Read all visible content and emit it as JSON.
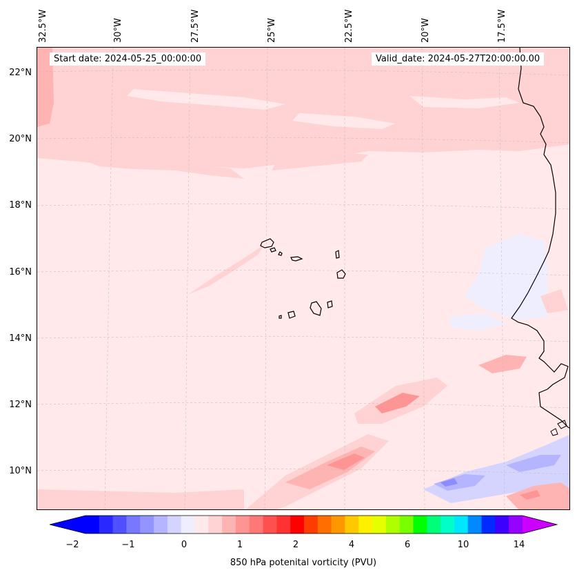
{
  "header": {
    "start_date": "Start date: 2024-05-25_00:00:00",
    "valid_date": "Valid_date: 2024-05-27T20:00:00.00"
  },
  "longitude_labels": [
    "32.5°W",
    "30°W",
    "27.5°W",
    "25°W",
    "22.5°W",
    "20°W",
    "17.5°W"
  ],
  "latitude_labels": [
    "22°N",
    "20°N",
    "18°N",
    "16°N",
    "14°N",
    "12°N",
    "10°N"
  ],
  "colorbar": {
    "label": "850 hPa potenital vorticity (PVU)",
    "ticks": [
      "−2",
      "−1",
      "0",
      "1",
      "2",
      "4",
      "6",
      "10",
      "14"
    ],
    "colors": [
      "#0000ff",
      "#2828ff",
      "#5050ff",
      "#7878ff",
      "#9494ff",
      "#b4b4ff",
      "#d4d4ff",
      "#eeeeff",
      "#ffe9ea",
      "#ffd2d3",
      "#ffb4b4",
      "#ff9494",
      "#ff7878",
      "#ff5050",
      "#ff3232",
      "#ff0000",
      "#ff3c00",
      "#ff6e00",
      "#ff9800",
      "#ffc800",
      "#fff000",
      "#e6ff00",
      "#b0ff00",
      "#78ff00",
      "#00ff00",
      "#00ff78",
      "#00ffc8",
      "#00e6ff",
      "#0088ff",
      "#0028ff",
      "#3c00ff",
      "#9600ff"
    ],
    "under_color": "#0000ff",
    "over_color": "#cc00ff"
  },
  "colors": {
    "background": "#ffe9ea",
    "light_pink": "#ffd2d3",
    "pink": "#ffb4b4",
    "rose": "#ff9494",
    "pale_blue": "#eeeeff",
    "light_blue": "#b4b4ff",
    "blue": "#8c8cff",
    "coast": "#000000"
  }
}
